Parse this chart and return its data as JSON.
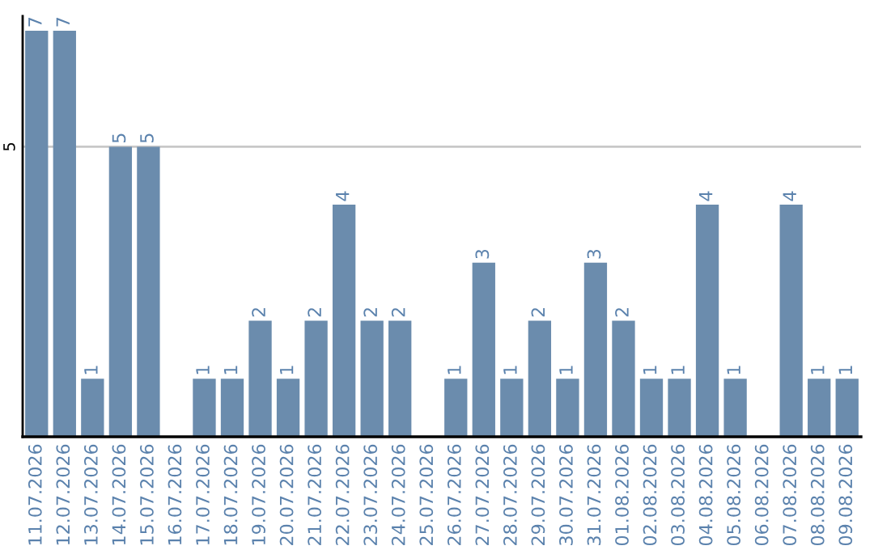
{
  "chart_data": {
    "type": "bar",
    "categories": [
      "11.07.2026",
      "12.07.2026",
      "13.07.2026",
      "14.07.2026",
      "15.07.2026",
      "16.07.2026",
      "17.07.2026",
      "18.07.2026",
      "19.07.2026",
      "20.07.2026",
      "21.07.2026",
      "22.07.2026",
      "23.07.2026",
      "24.07.2026",
      "25.07.2026",
      "26.07.2026",
      "27.07.2026",
      "28.07.2026",
      "29.07.2026",
      "30.07.2026",
      "31.07.2026",
      "01.08.2026",
      "02.08.2026",
      "03.08.2026",
      "04.08.2026",
      "05.08.2026",
      "06.08.2026",
      "07.08.2026",
      "08.08.2026",
      "09.08.2026"
    ],
    "values": [
      7,
      7,
      1,
      5,
      5,
      0,
      1,
      1,
      2,
      1,
      2,
      4,
      2,
      2,
      0,
      1,
      3,
      1,
      2,
      1,
      3,
      2,
      1,
      1,
      4,
      1,
      0,
      4,
      1,
      1
    ],
    "value_labels": [
      "7",
      "7",
      "1",
      "5",
      "5",
      null,
      "1",
      "1",
      "2",
      "1",
      "2",
      "4",
      "2",
      "2",
      null,
      "1",
      "3",
      "1",
      "2",
      "1",
      "3",
      "2",
      "1",
      "1",
      "4",
      "1",
      null,
      "4",
      "1",
      "1"
    ],
    "color": "#6b8cad",
    "ylim": [
      0,
      7.25
    ],
    "yticks": [
      5
    ],
    "grid": "y"
  }
}
